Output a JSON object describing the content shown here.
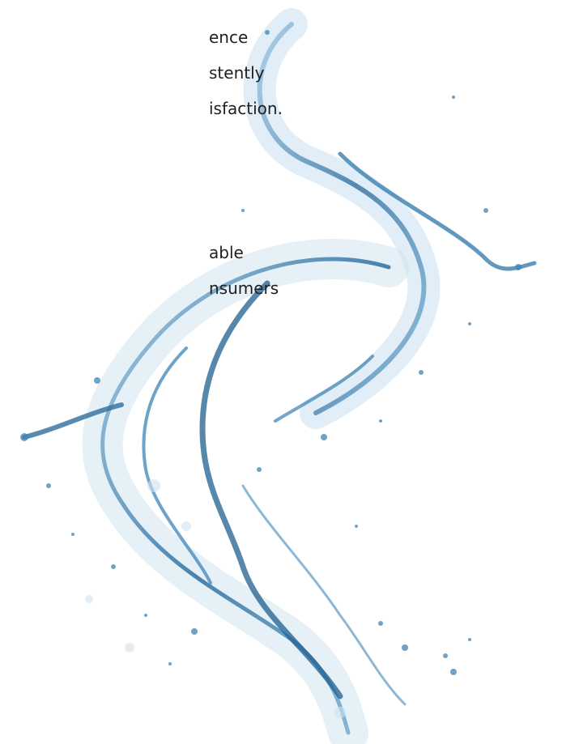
{
  "paragraphs": [
    {
      "lines": [
        "ence",
        "stently",
        "isfaction."
      ]
    },
    {
      "lines": [
        "able",
        "nsumers"
      ]
    }
  ]
}
